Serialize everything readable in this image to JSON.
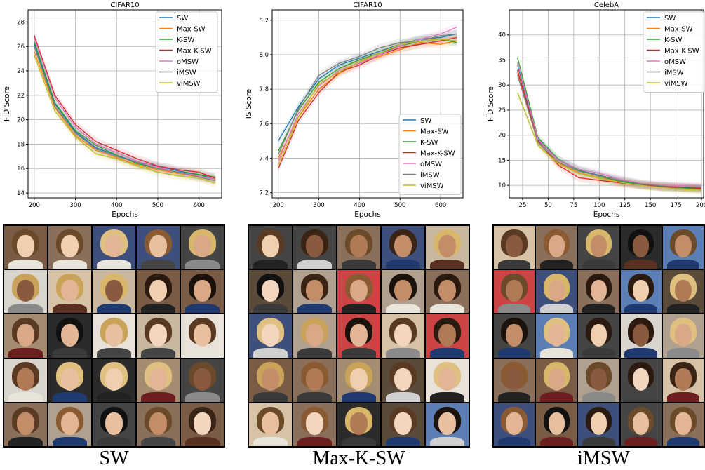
{
  "chart_data": [
    {
      "type": "line",
      "title": "CIFAR10",
      "xlabel": "Epochs",
      "ylabel": "FID Score",
      "xlim": [
        185,
        655
      ],
      "ylim": [
        13.6,
        29
      ],
      "xticks": [
        200,
        300,
        400,
        500,
        600
      ],
      "yticks": [
        14,
        16,
        18,
        20,
        22,
        24,
        26,
        28
      ],
      "grid": true,
      "legend": "top-right",
      "x": [
        200,
        250,
        300,
        350,
        400,
        450,
        500,
        550,
        600,
        640
      ],
      "series": [
        {
          "name": "SW",
          "color": "#1f77b4",
          "values": [
            26.2,
            21.3,
            19.0,
            17.7,
            17.1,
            16.5,
            16.2,
            15.8,
            15.5,
            15.1
          ]
        },
        {
          "name": "Max-SW",
          "color": "#ff7f0e",
          "values": [
            25.6,
            21.0,
            18.7,
            17.5,
            16.9,
            16.3,
            15.9,
            15.6,
            15.3,
            15.0
          ]
        },
        {
          "name": "K-SW",
          "color": "#2ca02c",
          "values": [
            26.4,
            21.4,
            19.1,
            17.9,
            17.1,
            16.4,
            16.0,
            15.7,
            15.5,
            15.3
          ]
        },
        {
          "name": "Max-K-SW",
          "color": "#d62728",
          "values": [
            26.9,
            22.0,
            19.6,
            18.2,
            17.5,
            16.8,
            16.2,
            15.9,
            15.7,
            15.2
          ]
        },
        {
          "name": "oMSW",
          "color": "#e377c2",
          "values": [
            26.7,
            21.8,
            19.4,
            18.0,
            17.3,
            16.6,
            16.1,
            15.7,
            15.4,
            15.1
          ]
        },
        {
          "name": "iMSW",
          "color": "#7f7f7f",
          "values": [
            26.0,
            21.1,
            18.9,
            17.6,
            17.0,
            16.5,
            16.0,
            15.7,
            15.3,
            15.0
          ]
        },
        {
          "name": "viMSW",
          "color": "#bcbd22",
          "values": [
            25.3,
            20.7,
            18.6,
            17.2,
            16.8,
            16.2,
            15.7,
            15.4,
            15.2,
            14.8
          ]
        }
      ]
    },
    {
      "type": "line",
      "title": "CIFAR10",
      "xlabel": "Epochs",
      "ylabel": "IS Score",
      "xlim": [
        185,
        655
      ],
      "ylim": [
        7.17,
        8.26
      ],
      "xticks": [
        200,
        300,
        400,
        500,
        600
      ],
      "yticks": [
        7.2,
        7.4,
        7.6,
        7.8,
        8.0,
        8.2
      ],
      "grid": true,
      "legend": "bottom-right",
      "x": [
        200,
        250,
        300,
        350,
        400,
        450,
        500,
        550,
        600,
        640
      ],
      "series": [
        {
          "name": "SW",
          "color": "#1f77b4",
          "values": [
            7.5,
            7.7,
            7.86,
            7.94,
            7.98,
            8.02,
            8.06,
            8.09,
            8.1,
            8.12
          ]
        },
        {
          "name": "Max-SW",
          "color": "#ff7f0e",
          "values": [
            7.4,
            7.64,
            7.8,
            7.89,
            7.96,
            7.99,
            8.03,
            8.07,
            8.06,
            8.08
          ]
        },
        {
          "name": "K-SW",
          "color": "#2ca02c",
          "values": [
            7.44,
            7.68,
            7.84,
            7.92,
            7.97,
            8.01,
            8.05,
            8.08,
            8.09,
            8.07
          ]
        },
        {
          "name": "Max-K-SW",
          "color": "#d62728",
          "values": [
            7.34,
            7.62,
            7.78,
            7.9,
            7.94,
            8.0,
            8.04,
            8.06,
            8.08,
            8.1
          ]
        },
        {
          "name": "oMSW",
          "color": "#e377c2",
          "values": [
            7.38,
            7.66,
            7.82,
            7.91,
            7.95,
            8.0,
            8.05,
            8.09,
            8.12,
            8.16
          ]
        },
        {
          "name": "iMSW",
          "color": "#7f7f7f",
          "values": [
            7.42,
            7.69,
            7.88,
            7.95,
            7.99,
            8.04,
            8.07,
            8.08,
            8.11,
            8.12
          ]
        },
        {
          "name": "viMSW",
          "color": "#bcbd22",
          "values": [
            7.36,
            7.64,
            7.83,
            7.9,
            7.96,
            8.01,
            8.06,
            8.08,
            8.09,
            8.08
          ]
        }
      ]
    },
    {
      "type": "line",
      "title": "CelebA",
      "xlabel": "Epochs",
      "ylabel": "FID Score",
      "xlim": [
        12,
        202
      ],
      "ylim": [
        7.5,
        45
      ],
      "xticks": [
        25,
        50,
        75,
        100,
        125,
        150,
        175,
        200
      ],
      "yticks": [
        10,
        15,
        20,
        25,
        30,
        35,
        40
      ],
      "grid": true,
      "legend": "top-right",
      "x": [
        20,
        40,
        60,
        80,
        100,
        120,
        140,
        160,
        180,
        200
      ],
      "series": [
        {
          "name": "SW",
          "color": "#1f77b4",
          "values": [
            34.0,
            19.0,
            15.0,
            13.0,
            12.0,
            11.0,
            10.2,
            9.8,
            9.6,
            9.5
          ]
        },
        {
          "name": "Max-SW",
          "color": "#ff7f0e",
          "values": [
            32.5,
            18.5,
            14.5,
            12.5,
            11.5,
            10.7,
            10.0,
            9.7,
            9.5,
            9.3
          ]
        },
        {
          "name": "K-SW",
          "color": "#2ca02c",
          "values": [
            35.5,
            19.5,
            15.2,
            13.0,
            11.8,
            10.8,
            10.1,
            9.6,
            9.5,
            9.2
          ]
        },
        {
          "name": "Max-K-SW",
          "color": "#d62728",
          "values": [
            33.0,
            18.8,
            14.0,
            11.5,
            11.0,
            10.5,
            10.0,
            9.8,
            9.6,
            9.4
          ]
        },
        {
          "name": "oMSW",
          "color": "#e377c2",
          "values": [
            34.5,
            19.2,
            15.0,
            13.2,
            12.4,
            11.2,
            10.4,
            10.1,
            9.9,
            9.8
          ]
        },
        {
          "name": "iMSW",
          "color": "#7f7f7f",
          "values": [
            32.0,
            18.6,
            14.6,
            12.8,
            11.9,
            11.0,
            10.3,
            9.9,
            9.7,
            9.6
          ]
        },
        {
          "name": "viMSW",
          "color": "#bcbd22",
          "values": [
            28.5,
            18.0,
            14.3,
            12.4,
            11.4,
            10.6,
            10.0,
            9.6,
            9.2,
            9.0
          ]
        }
      ]
    }
  ],
  "captions": [
    "SW",
    "Max-K-SW",
    "iMSW"
  ]
}
